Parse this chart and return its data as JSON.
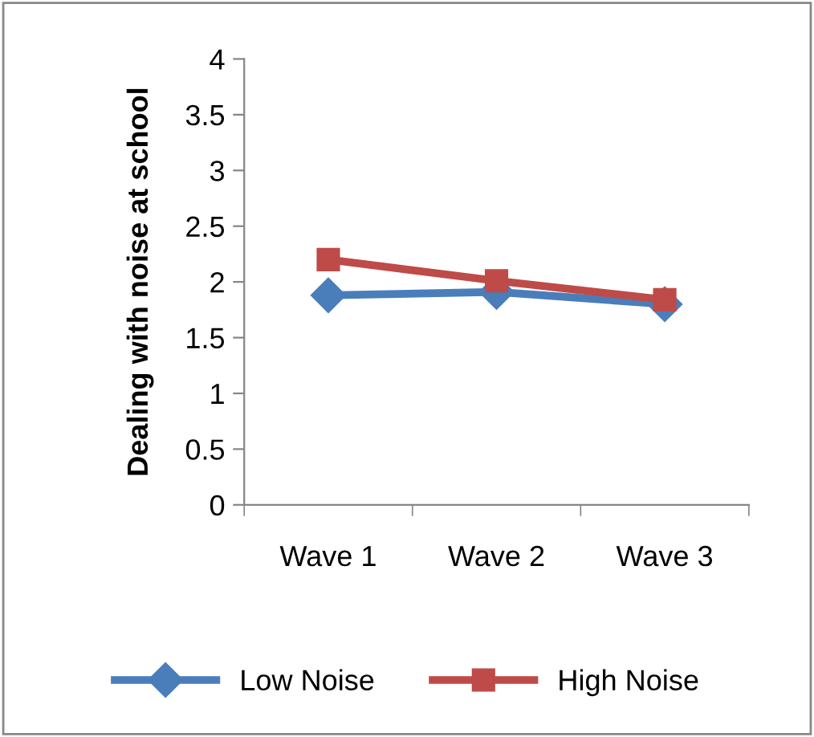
{
  "chart_data": {
    "type": "line",
    "ylabel": "Dealing with noise at school",
    "categories": [
      "Wave 1",
      "Wave 2",
      "Wave 3"
    ],
    "series": [
      {
        "name": "Low Noise",
        "color": "#4a7ebb",
        "marker": "diamond",
        "values": [
          1.88,
          1.91,
          1.8
        ]
      },
      {
        "name": "High Noise",
        "color": "#be4b48",
        "marker": "square",
        "values": [
          2.2,
          2.01,
          1.84
        ]
      }
    ],
    "ylim": [
      0,
      4
    ],
    "yticks": [
      0,
      0.5,
      1,
      1.5,
      2,
      2.5,
      3,
      3.5,
      4
    ],
    "grid": false,
    "legend": "bottom"
  }
}
